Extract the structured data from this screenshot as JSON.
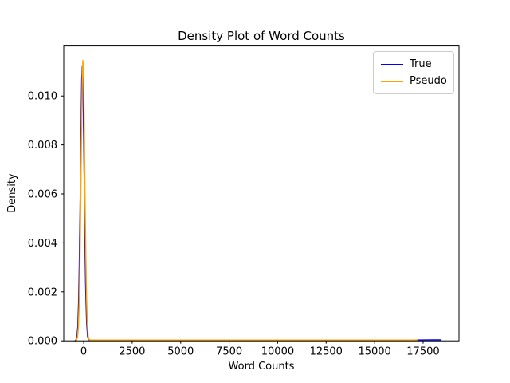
{
  "chart_data": {
    "type": "line",
    "title": "Density Plot of Word Counts",
    "xlabel": "Word Counts",
    "ylabel": "Density",
    "xlim": [
      -1030,
      19350
    ],
    "ylim": [
      0,
      0.01204
    ],
    "x_ticks": [
      0,
      2500,
      5000,
      7500,
      10000,
      12500,
      15000,
      17500
    ],
    "x_tick_labels": [
      "0",
      "2500",
      "5000",
      "7500",
      "10000",
      "12500",
      "15000",
      "17500"
    ],
    "y_ticks": [
      0.0,
      0.002,
      0.004,
      0.006,
      0.008,
      0.01
    ],
    "y_tick_labels": [
      "0.000",
      "0.002",
      "0.004",
      "0.006",
      "0.008",
      "0.010"
    ],
    "grid": false,
    "legend_position": "upper right",
    "background_color": "#ffffff",
    "axis_color": "#000000",
    "legend_border_color": "#cccccc",
    "series": [
      {
        "name": "True",
        "color": "#0000ee",
        "peak": {
          "x": -70,
          "y": 0.0112
        },
        "x_end": 18425,
        "points": [
          [
            -450,
            0.0
          ],
          [
            -400,
            3e-05
          ],
          [
            -350,
            0.00015
          ],
          [
            -300,
            0.0006
          ],
          [
            -250,
            0.0019
          ],
          [
            -200,
            0.0044
          ],
          [
            -150,
            0.0078
          ],
          [
            -100,
            0.0107
          ],
          [
            -70,
            0.0112
          ],
          [
            -40,
            0.0107
          ],
          [
            0,
            0.0085
          ],
          [
            50,
            0.005
          ],
          [
            100,
            0.0023
          ],
          [
            150,
            0.0008
          ],
          [
            200,
            0.0002
          ],
          [
            250,
            6e-05
          ],
          [
            300,
            3e-05
          ],
          [
            500,
            3e-05
          ],
          [
            1000,
            3e-05
          ],
          [
            2500,
            3e-05
          ],
          [
            5000,
            3e-05
          ],
          [
            7500,
            3e-05
          ],
          [
            10000,
            3e-05
          ],
          [
            12500,
            3e-05
          ],
          [
            15000,
            3e-05
          ],
          [
            17000,
            3e-05
          ],
          [
            18000,
            4e-05
          ],
          [
            18425,
            4e-05
          ]
        ]
      },
      {
        "name": "Pseudo",
        "color": "#ffa500",
        "peak": {
          "x": -40,
          "y": 0.01145
        },
        "x_end": 17180,
        "points": [
          [
            -420,
            0.0
          ],
          [
            -370,
            3e-05
          ],
          [
            -320,
            0.00015
          ],
          [
            -270,
            0.0006
          ],
          [
            -220,
            0.0019
          ],
          [
            -170,
            0.0045
          ],
          [
            -120,
            0.008
          ],
          [
            -70,
            0.0109
          ],
          [
            -40,
            0.01145
          ],
          [
            -10,
            0.0109
          ],
          [
            30,
            0.0087
          ],
          [
            80,
            0.0051
          ],
          [
            130,
            0.0024
          ],
          [
            180,
            0.0008
          ],
          [
            230,
            0.0002
          ],
          [
            280,
            6e-05
          ],
          [
            330,
            3e-05
          ],
          [
            500,
            3e-05
          ],
          [
            1000,
            3e-05
          ],
          [
            2500,
            3e-05
          ],
          [
            5000,
            3e-05
          ],
          [
            7500,
            3e-05
          ],
          [
            10000,
            3e-05
          ],
          [
            12500,
            3e-05
          ],
          [
            15000,
            3e-05
          ],
          [
            17180,
            3e-05
          ]
        ]
      }
    ]
  }
}
